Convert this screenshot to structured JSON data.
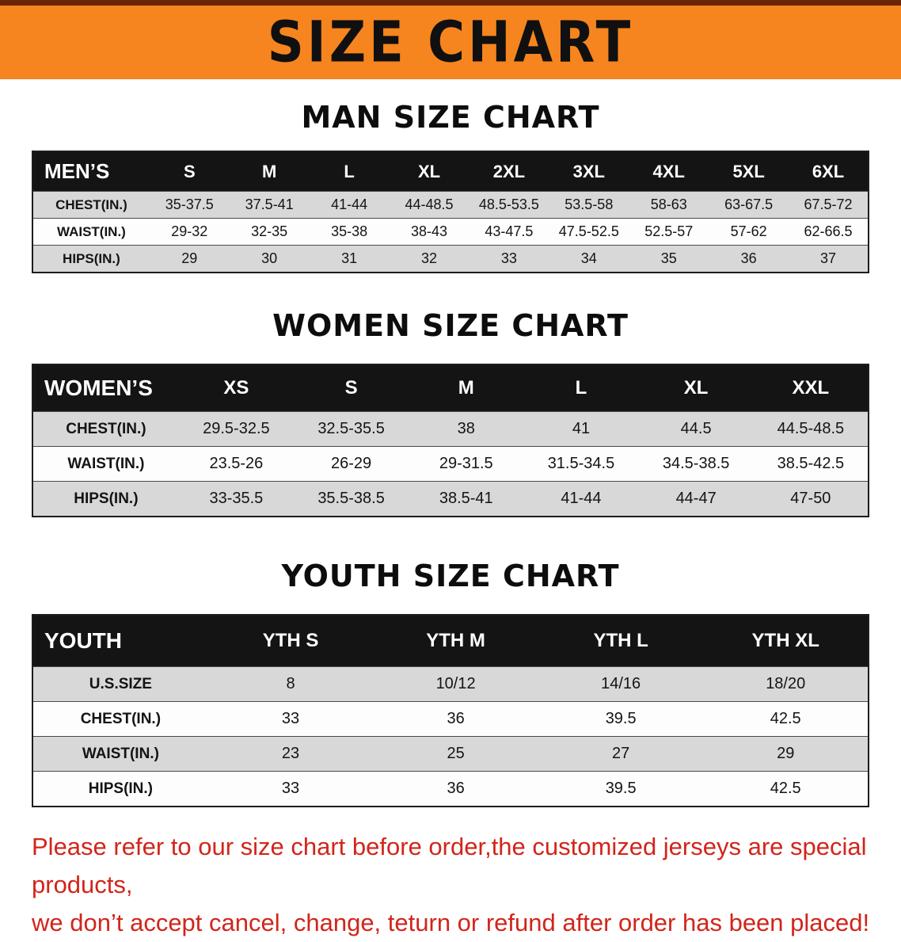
{
  "banner": {
    "title": "SIZE CHART"
  },
  "sections": [
    {
      "heading": "MAN SIZE CHART",
      "table": {
        "header": [
          "MEN’S",
          "S",
          "M",
          "L",
          "XL",
          "2XL",
          "3XL",
          "4XL",
          "5XL",
          "6XL"
        ],
        "rows": [
          [
            "CHEST(IN.)",
            "35-37.5",
            "37.5-41",
            "41-44",
            "44-48.5",
            "48.5-53.5",
            "53.5-58",
            "58-63",
            "63-67.5",
            "67.5-72"
          ],
          [
            "WAIST(IN.)",
            "29-32",
            "32-35",
            "35-38",
            "38-43",
            "43-47.5",
            "47.5-52.5",
            "52.5-57",
            "57-62",
            "62-66.5"
          ],
          [
            "HIPS(IN.)",
            "29",
            "30",
            "31",
            "32",
            "33",
            "34",
            "35",
            "36",
            "37"
          ]
        ]
      }
    },
    {
      "heading": "WOMEN SIZE CHART",
      "table": {
        "header": [
          "WOMEN’S",
          "XS",
          "S",
          "M",
          "L",
          "XL",
          "XXL"
        ],
        "rows": [
          [
            "CHEST(IN.)",
            "29.5-32.5",
            "32.5-35.5",
            "38",
            "41",
            "44.5",
            "44.5-48.5"
          ],
          [
            "WAIST(IN.)",
            "23.5-26",
            "26-29",
            "29-31.5",
            "31.5-34.5",
            "34.5-38.5",
            "38.5-42.5"
          ],
          [
            "HIPS(IN.)",
            "33-35.5",
            "35.5-38.5",
            "38.5-41",
            "41-44",
            "44-47",
            "47-50"
          ]
        ]
      }
    },
    {
      "heading": "YOUTH SIZE CHART",
      "table": {
        "header": [
          "YOUTH",
          "YTH S",
          "YTH M",
          "YTH L",
          "YTH XL"
        ],
        "rows": [
          [
            "U.S.SIZE",
            "8",
            "10/12",
            "14/16",
            "18/20"
          ],
          [
            "CHEST(IN.)",
            "33",
            "36",
            "39.5",
            "42.5"
          ],
          [
            "WAIST(IN.)",
            "23",
            "25",
            "27",
            "29"
          ],
          [
            "HIPS(IN.)",
            "33",
            "36",
            "39.5",
            "42.5"
          ]
        ]
      }
    }
  ],
  "footer": {
    "line1": "Please refer to our size chart before order,the customized jerseys are special products,",
    "line2": "we don’t accept cancel, change, teturn or refund after order has been placed!"
  },
  "colors": {
    "banner_orange": "#f6851f",
    "banner_trim": "#6a2408",
    "header_black": "#141414",
    "stripe_gray": "#d8d8d8",
    "notice_red": "#d2251b"
  }
}
